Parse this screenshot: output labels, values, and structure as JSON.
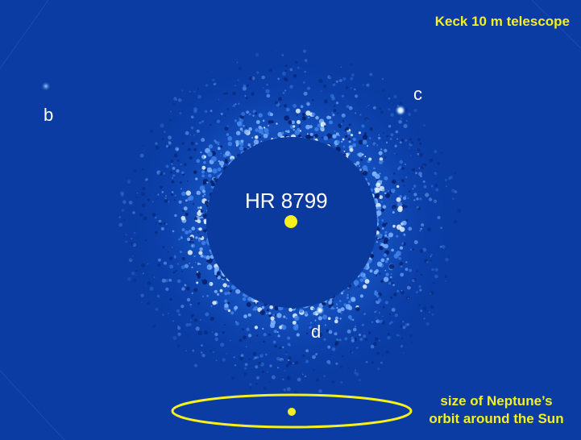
{
  "telescope_label": "Keck 10 m telescope",
  "star": {
    "name": "HR 8799"
  },
  "planets": [
    {
      "label": "b"
    },
    {
      "label": "c"
    },
    {
      "label": "d"
    }
  ],
  "scale_note": {
    "line1": "size of Neptune’s",
    "line2": "orbit around the Sun"
  },
  "colors": {
    "background": "#0a3ca3",
    "mask": "#0a3a9e",
    "speckle": "#6ea8ff",
    "annotation": "#f5f01e",
    "label": "#ffffff"
  }
}
